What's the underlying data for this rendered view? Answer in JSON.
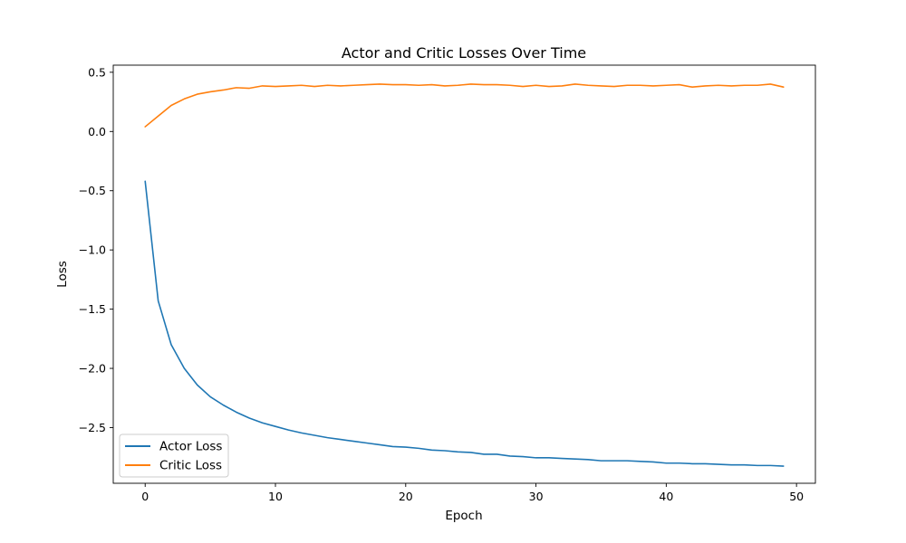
{
  "chart_data": {
    "type": "line",
    "title": "Actor and Critic Losses Over Time",
    "xlabel": "Epoch",
    "ylabel": "Loss",
    "xlim": [
      -2.45,
      51.45
    ],
    "ylim": [
      -2.97,
      0.56
    ],
    "xticks": [
      0,
      10,
      20,
      30,
      40,
      50
    ],
    "yticks": [
      -2.5,
      -2.0,
      -1.5,
      -1.0,
      -0.5,
      0.0,
      0.5
    ],
    "ytick_labels": [
      "−2.5",
      "−2.0",
      "−1.5",
      "−1.0",
      "−0.5",
      "0.0",
      "0.5"
    ],
    "grid": false,
    "legend_position": "lower-left",
    "x": [
      0,
      1,
      2,
      3,
      4,
      5,
      6,
      7,
      8,
      9,
      10,
      11,
      12,
      13,
      14,
      15,
      16,
      17,
      18,
      19,
      20,
      21,
      22,
      23,
      24,
      25,
      26,
      27,
      28,
      29,
      30,
      31,
      32,
      33,
      34,
      35,
      36,
      37,
      38,
      39,
      40,
      41,
      42,
      43,
      44,
      45,
      46,
      47,
      48,
      49
    ],
    "series": [
      {
        "name": "Actor Loss",
        "color": "#1f77b4",
        "values": [
          -0.42,
          -1.43,
          -1.8,
          -2.0,
          -2.14,
          -2.24,
          -2.31,
          -2.37,
          -2.42,
          -2.46,
          -2.49,
          -2.52,
          -2.545,
          -2.565,
          -2.585,
          -2.6,
          -2.615,
          -2.63,
          -2.645,
          -2.66,
          -2.665,
          -2.675,
          -2.69,
          -2.695,
          -2.705,
          -2.71,
          -2.725,
          -2.725,
          -2.74,
          -2.745,
          -2.755,
          -2.755,
          -2.76,
          -2.765,
          -2.77,
          -2.78,
          -2.78,
          -2.78,
          -2.785,
          -2.79,
          -2.8,
          -2.8,
          -2.805,
          -2.805,
          -2.81,
          -2.815,
          -2.815,
          -2.82,
          -2.82,
          -2.825
        ]
      },
      {
        "name": "Critic Loss",
        "color": "#ff7f0e",
        "values": [
          0.04,
          0.13,
          0.22,
          0.275,
          0.315,
          0.335,
          0.35,
          0.37,
          0.365,
          0.385,
          0.38,
          0.385,
          0.39,
          0.38,
          0.39,
          0.385,
          0.39,
          0.395,
          0.4,
          0.395,
          0.395,
          0.39,
          0.395,
          0.385,
          0.39,
          0.4,
          0.395,
          0.395,
          0.39,
          0.38,
          0.39,
          0.38,
          0.385,
          0.4,
          0.39,
          0.385,
          0.38,
          0.39,
          0.39,
          0.385,
          0.39,
          0.395,
          0.375,
          0.385,
          0.39,
          0.385,
          0.39,
          0.39,
          0.4,
          0.375
        ]
      }
    ]
  }
}
